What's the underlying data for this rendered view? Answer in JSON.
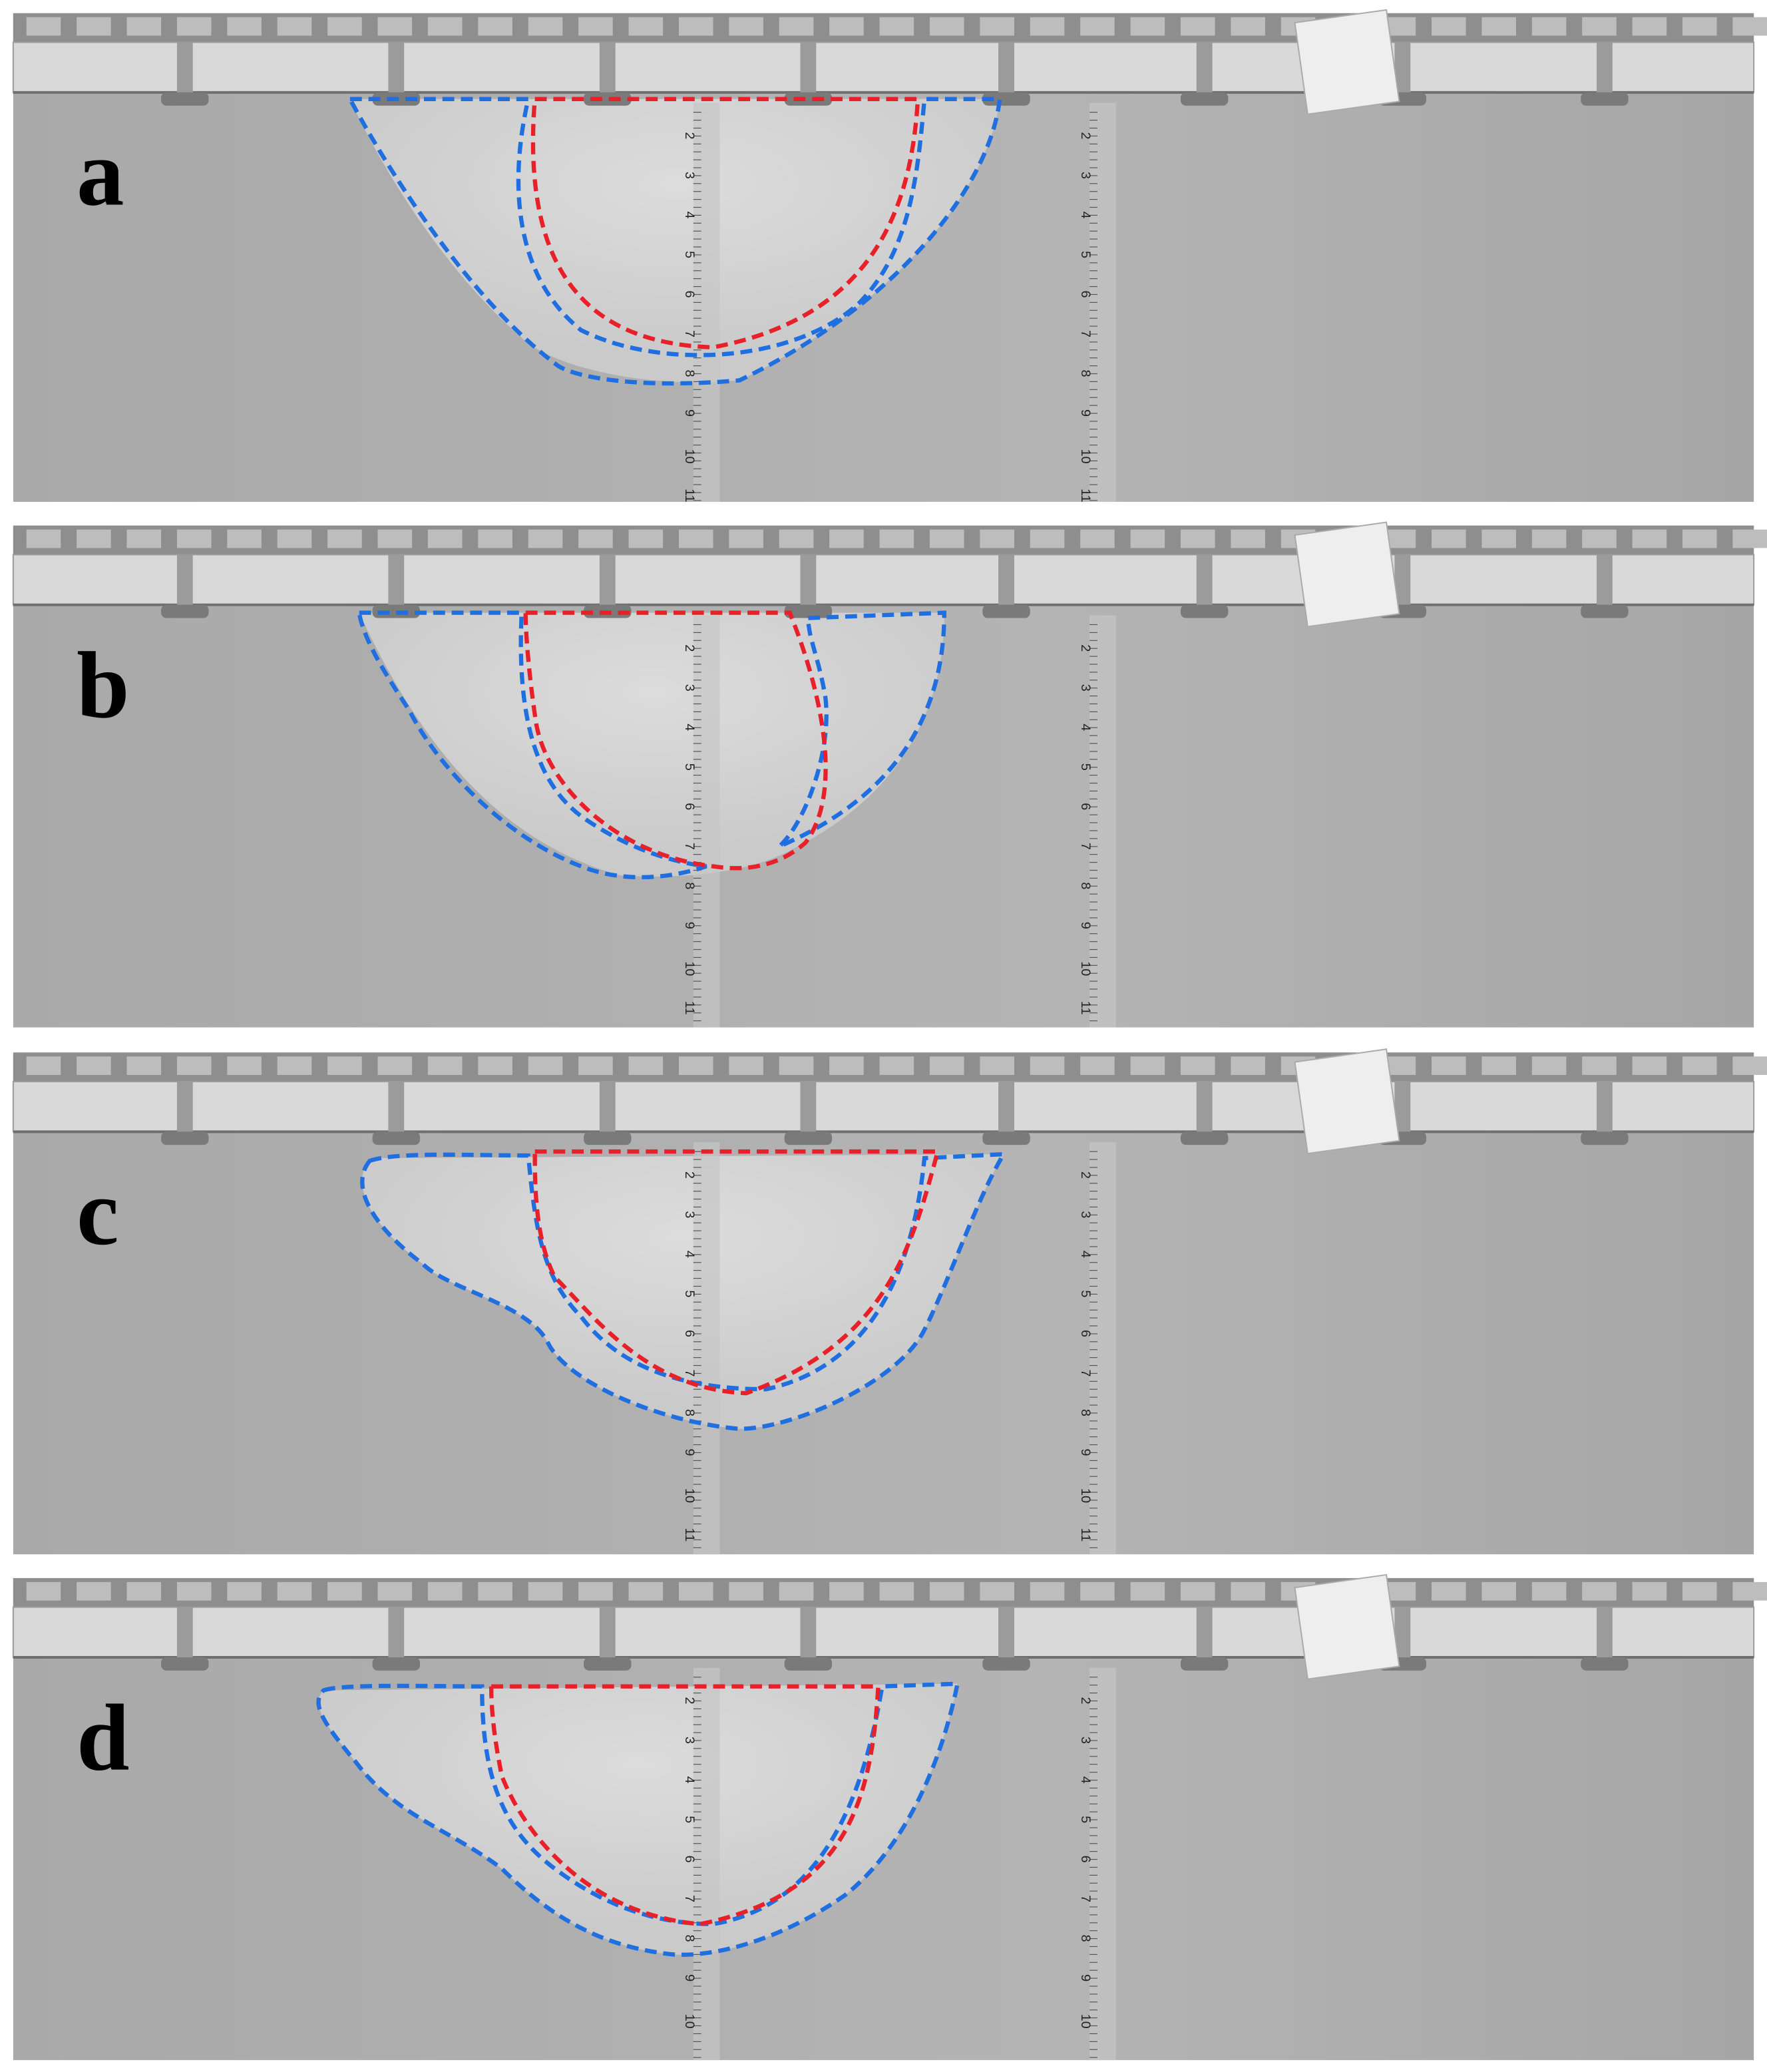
{
  "panels": [
    {
      "label": "a"
    },
    {
      "label": "b"
    },
    {
      "label": "c"
    },
    {
      "label": "d"
    }
  ],
  "ruler_marks": [
    "2",
    "3",
    "4",
    "5",
    "6",
    "7",
    "8",
    "9",
    "10",
    "11"
  ]
}
